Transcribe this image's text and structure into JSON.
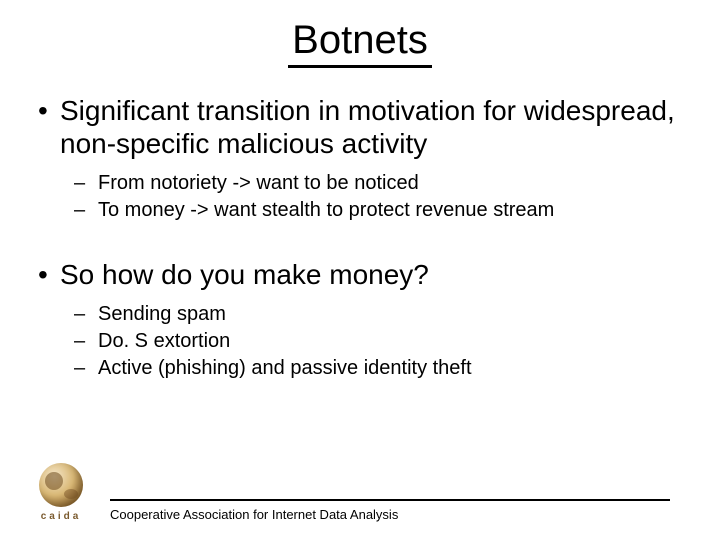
{
  "colors": {
    "background": "#ffffff",
    "text": "#000000",
    "rule": "#000000",
    "logo_globe_light": "#f5e6c8",
    "logo_globe_mid": "#d9b876",
    "logo_globe_dark": "#a47939",
    "logo_globe_edge": "#6e4a1e",
    "logo_text": "#7a5a2e"
  },
  "typography": {
    "title_fontsize": 40,
    "level1_fontsize": 28,
    "level2_fontsize": 20,
    "footer_fontsize": 13,
    "logo_text_fontsize": 10,
    "title_underline_width": 3,
    "footer_rule_width": 2
  },
  "title": "Botnets",
  "bullets": [
    {
      "text": "Significant transition in motivation for widespread, non-specific malicious activity",
      "sub": [
        "From notoriety -> want to be noticed",
        "To money -> want stealth to protect revenue stream"
      ]
    },
    {
      "text": "So how do you make money?",
      "sub": [
        "Sending spam",
        "Do. S extortion",
        "Active (phishing) and passive identity theft"
      ]
    }
  ],
  "footer": {
    "logo_text": "caida",
    "org": "Cooperative Association for Internet Data Analysis"
  }
}
